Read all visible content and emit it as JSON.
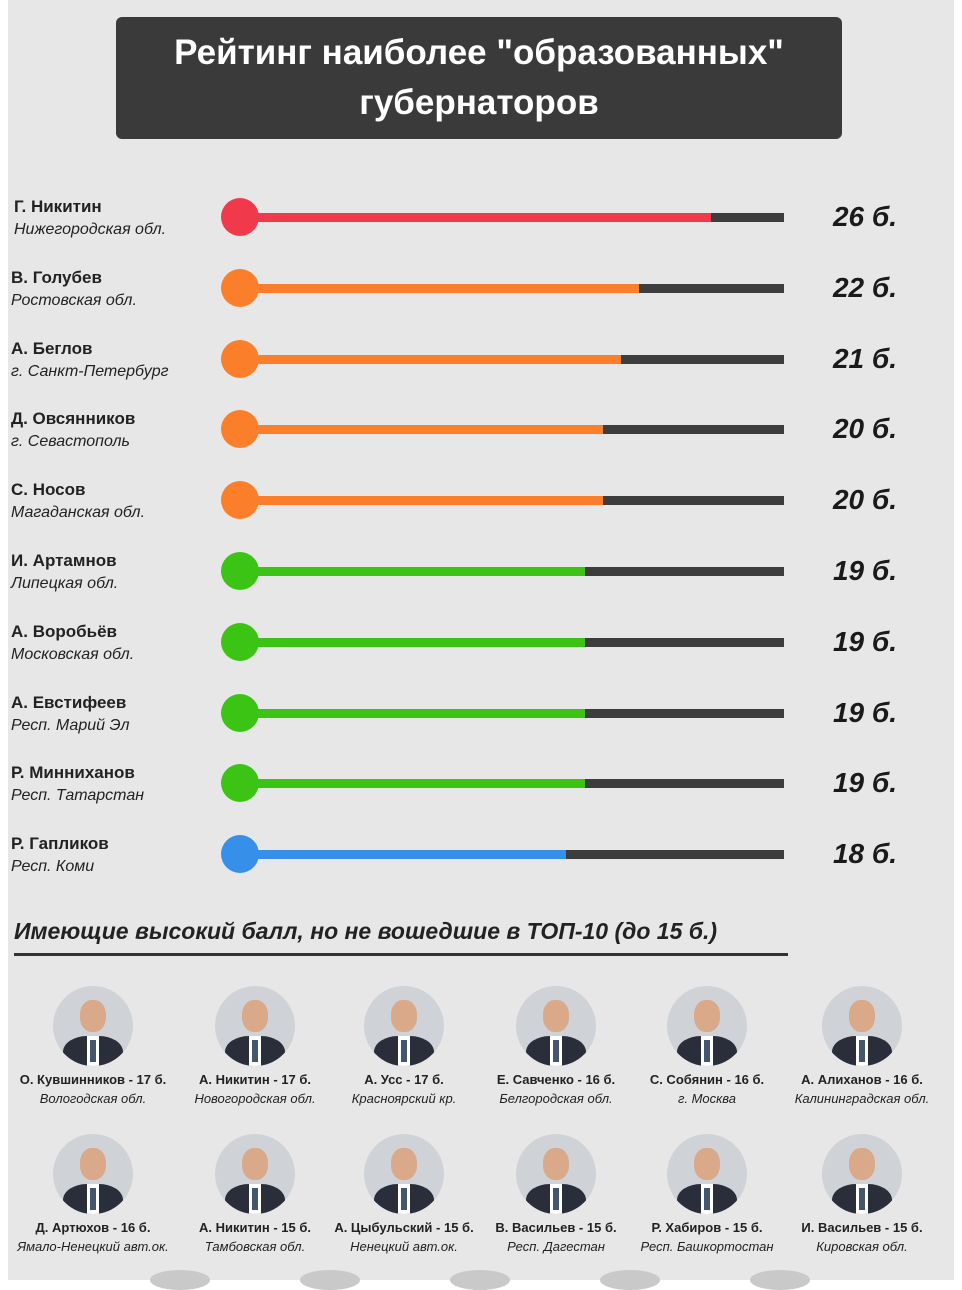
{
  "title": {
    "line1": "Рейтинг наиболее \"образованных\"",
    "line2": "губернаторов"
  },
  "colors": {
    "red": "#f0394a",
    "orange": "#fb7f2a",
    "green": "#3bc414",
    "blue": "#3690ea",
    "track": "#3d3d3d",
    "background": "#e7e7e7",
    "title_bg": "#3a3a3a"
  },
  "chart_data": {
    "type": "bar",
    "orientation": "horizontal",
    "title": "Рейтинг наиболее \"образованных\" губернаторов",
    "max_value": 30,
    "categories": [
      "Г. Никитин",
      "В. Голубев",
      "А. Беглов",
      "Д. Овсянников",
      "С. Носов",
      "И. Артамнов",
      "А. Воробьёв",
      "А. Евстифеев",
      "Р. Минниханов",
      "Р. Гапликов"
    ],
    "values": [
      26,
      22,
      21,
      20,
      20,
      19,
      19,
      19,
      19,
      18
    ],
    "rows": [
      {
        "name": "Г. Никитин",
        "region": "Нижегородская обл.",
        "value": 26,
        "score": "26 б.",
        "color": "red"
      },
      {
        "name": "В. Голубев",
        "region": "Ростовская обл.",
        "value": 22,
        "score": "22 б.",
        "color": "orange"
      },
      {
        "name": "А. Беглов",
        "region": "г. Санкт-Петербург",
        "value": 21,
        "score": "21 б.",
        "color": "orange"
      },
      {
        "name": "Д. Овсянников",
        "region": "г. Севастополь",
        "value": 20,
        "score": "20 б.",
        "color": "orange"
      },
      {
        "name": "С. Носов",
        "region": "Магаданская обл.",
        "value": 20,
        "score": "20 б.",
        "color": "orange"
      },
      {
        "name": "И. Артамнов",
        "region": "Липецкая обл.",
        "value": 19,
        "score": "19 б.",
        "color": "green"
      },
      {
        "name": "А. Воробьёв",
        "region": "Московская обл.",
        "value": 19,
        "score": "19 б.",
        "color": "green"
      },
      {
        "name": "А. Евстифеев",
        "region": "Респ. Марий Эл",
        "value": 19,
        "score": "19 б.",
        "color": "green"
      },
      {
        "name": "Р. Минниханов",
        "region": "Респ. Татарстан",
        "value": 19,
        "score": "19 б.",
        "color": "green"
      },
      {
        "name": "Р. Гапликов",
        "region": "Респ. Коми",
        "value": 18,
        "score": "18 б.",
        "color": "blue"
      }
    ]
  },
  "others": {
    "heading": "Имеющие высокий балл, но не вошедшие в ТОП-10 (до 15 б.)",
    "people": [
      {
        "label": "О. Кувшинников - 17 б.",
        "region": "Вологодская обл."
      },
      {
        "label": "А. Никитин - 17 б.",
        "region": "Новогородская обл."
      },
      {
        "label": "А. Усс - 17 б.",
        "region": "Красноярский кр."
      },
      {
        "label": "Е. Савченко - 16 б.",
        "region": "Белгородская обл."
      },
      {
        "label": "С. Собянин - 16 б.",
        "region": "г. Москва"
      },
      {
        "label": "А. Алиханов - 16 б.",
        "region": "Калининградская обл."
      },
      {
        "label": "Д. Артюхов - 16 б.",
        "region": "Ямало-Ненецкий авт.ок."
      },
      {
        "label": "А. Никитин - 15 б.",
        "region": "Тамбовская обл."
      },
      {
        "label": "А. Цыбульский - 15 б.",
        "region": "Ненецкий авт.ок."
      },
      {
        "label": "В. Васильев - 15 б.",
        "region": "Респ. Дагестан"
      },
      {
        "label": "Р. Хабиров - 15 б.",
        "region": "Респ. Башкортостан"
      },
      {
        "label": "И. Васильев - 15 б.",
        "region": "Кировская обл."
      }
    ]
  }
}
